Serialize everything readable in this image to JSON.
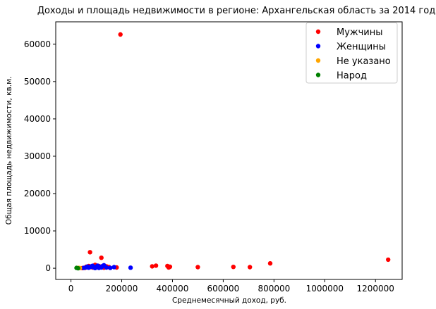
{
  "chart_data": {
    "type": "scatter",
    "title": "Доходы и площадь недвижимости в регионе: Архангельская область за 2014 год",
    "xlabel": "Среднемесячный доход, руб.",
    "ylabel": "Общая площадь недвижимости, кв.м.",
    "xlim": [
      -60000,
      1305000
    ],
    "ylim": [
      -3000,
      66000
    ],
    "xticks": [
      0,
      200000,
      400000,
      600000,
      800000,
      1000000,
      1200000
    ],
    "yticks": [
      0,
      10000,
      20000,
      30000,
      40000,
      50000,
      60000
    ],
    "grid": false,
    "legend": "top-right",
    "series": [
      {
        "name": "Мужчины",
        "color": "#ff0000",
        "points": [
          [
            195000,
            62600
          ],
          [
            75000,
            4300
          ],
          [
            120000,
            2800
          ],
          [
            1250000,
            2300
          ],
          [
            785000,
            1300
          ],
          [
            335000,
            700
          ],
          [
            320000,
            500
          ],
          [
            380000,
            600
          ],
          [
            390000,
            400
          ],
          [
            385000,
            200
          ],
          [
            500000,
            300
          ],
          [
            640000,
            350
          ],
          [
            705000,
            300
          ],
          [
            95000,
            900
          ],
          [
            110000,
            600
          ],
          [
            60000,
            400
          ],
          [
            140000,
            500
          ],
          [
            150000,
            300
          ],
          [
            180000,
            200
          ],
          [
            55000,
            100
          ],
          [
            85000,
            200
          ],
          [
            100000,
            300
          ],
          [
            130000,
            150
          ],
          [
            45000,
            50
          ],
          [
            70000,
            600
          ]
        ]
      },
      {
        "name": "Женщины",
        "color": "#0000ff",
        "points": [
          [
            235000,
            150
          ],
          [
            170000,
            300
          ],
          [
            125000,
            600
          ],
          [
            80000,
            500
          ],
          [
            90000,
            200
          ],
          [
            100000,
            400
          ],
          [
            110000,
            100
          ],
          [
            60000,
            250
          ],
          [
            70000,
            150
          ],
          [
            130000,
            800
          ],
          [
            115000,
            350
          ],
          [
            95000,
            50
          ],
          [
            140000,
            200
          ],
          [
            85000,
            650
          ],
          [
            105000,
            700
          ],
          [
            75000,
            300
          ],
          [
            50000,
            100
          ],
          [
            65000,
            450
          ],
          [
            120000,
            200
          ],
          [
            155000,
            100
          ]
        ]
      },
      {
        "name": "Не указано",
        "color": "#ffa500",
        "points": [
          [
            30000,
            100
          ],
          [
            35000,
            50
          ]
        ]
      },
      {
        "name": "Народ",
        "color": "#008000",
        "points": [
          [
            22000,
            100
          ],
          [
            28000,
            0
          ]
        ]
      }
    ]
  }
}
